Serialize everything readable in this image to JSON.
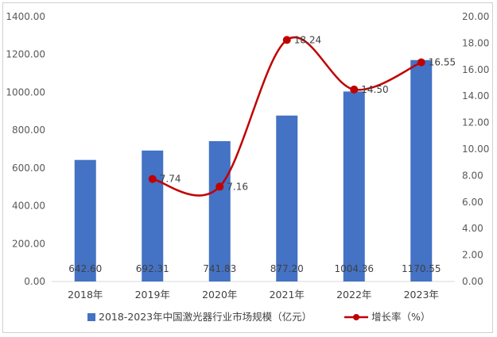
{
  "chart_data": {
    "type": "bar+line",
    "categories": [
      "2018年",
      "2019年",
      "2020年",
      "2021年",
      "2022年",
      "2023年"
    ],
    "series": [
      {
        "name": "2018-2023年中国激光器行业市场规模（亿元）",
        "type": "bar",
        "axis": "left",
        "values": [
          642.6,
          692.31,
          741.83,
          877.2,
          1004.36,
          1170.55
        ],
        "labels": [
          "642.60",
          "692.31",
          "741.83",
          "877.20",
          "1004.36",
          "1170.55"
        ],
        "color": "#4472c4"
      },
      {
        "name": "增长率（%）",
        "type": "line",
        "axis": "right",
        "values": [
          null,
          7.74,
          7.16,
          18.24,
          14.5,
          16.55
        ],
        "labels": [
          "",
          "7.74",
          "7.16",
          "18.24",
          "14.50",
          "16.55"
        ],
        "color": "#c00000"
      }
    ],
    "y_left": {
      "range": [
        0,
        1400
      ],
      "ticks": [
        "0.00",
        "200.00",
        "400.00",
        "600.00",
        "800.00",
        "1000.00",
        "1200.00",
        "1400.00"
      ]
    },
    "y_right": {
      "range": [
        0,
        20
      ],
      "ticks": [
        "0.00",
        "2.00",
        "4.00",
        "6.00",
        "8.00",
        "10.00",
        "12.00",
        "14.00",
        "16.00",
        "18.00",
        "20.00"
      ]
    },
    "grid": false,
    "legend_position": "bottom"
  }
}
